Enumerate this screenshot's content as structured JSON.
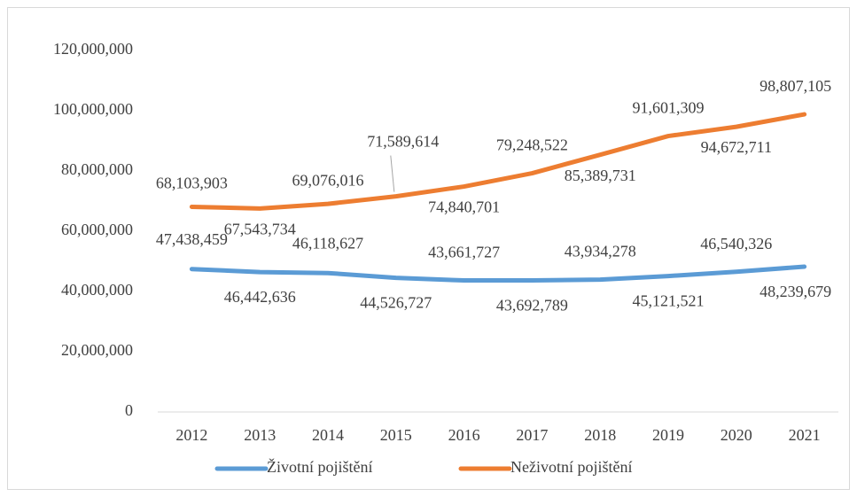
{
  "chart_data": {
    "type": "line",
    "categories": [
      "2012",
      "2013",
      "2014",
      "2015",
      "2016",
      "2017",
      "2018",
      "2019",
      "2020",
      "2021"
    ],
    "series": [
      {
        "name": "Životní pojištění",
        "color": "#5b9bd5",
        "values": [
          47438459,
          46442636,
          46118627,
          44526727,
          43661727,
          43692789,
          43934278,
          45121521,
          46540326,
          48239679
        ],
        "value_labels": [
          "47,438,459",
          "46,442,636",
          "46,118,627",
          "44,526,727",
          "43,661,727",
          "43,692,789",
          "43,934,278",
          "45,121,521",
          "46,540,326",
          "48,239,679"
        ]
      },
      {
        "name": "Neživotní pojištění",
        "color": "#ed7d31",
        "values": [
          68103903,
          67543734,
          69076016,
          71589614,
          74840701,
          79248522,
          85389731,
          91601309,
          94672711,
          98807105
        ],
        "value_labels": [
          "68,103,903",
          "67,543,734",
          "69,076,016",
          "71,589,614",
          "74,840,701",
          "79,248,522",
          "85,389,731",
          "91,601,309",
          "94,672,711",
          "98,807,105"
        ]
      }
    ],
    "ylim": [
      0,
      120000000
    ],
    "yticks": [
      0,
      {
        "value": 20000000,
        "label": "20,000,000"
      },
      {
        "value": 40000000,
        "label": "40,000,000"
      },
      {
        "value": 60000000,
        "label": "60,000,000"
      },
      {
        "value": 80000000,
        "label": "80,000,000"
      },
      {
        "value": 100000000,
        "label": "100,000,000"
      },
      {
        "value": 120000000,
        "label": "120,000,000"
      }
    ],
    "legend": "bottom"
  }
}
